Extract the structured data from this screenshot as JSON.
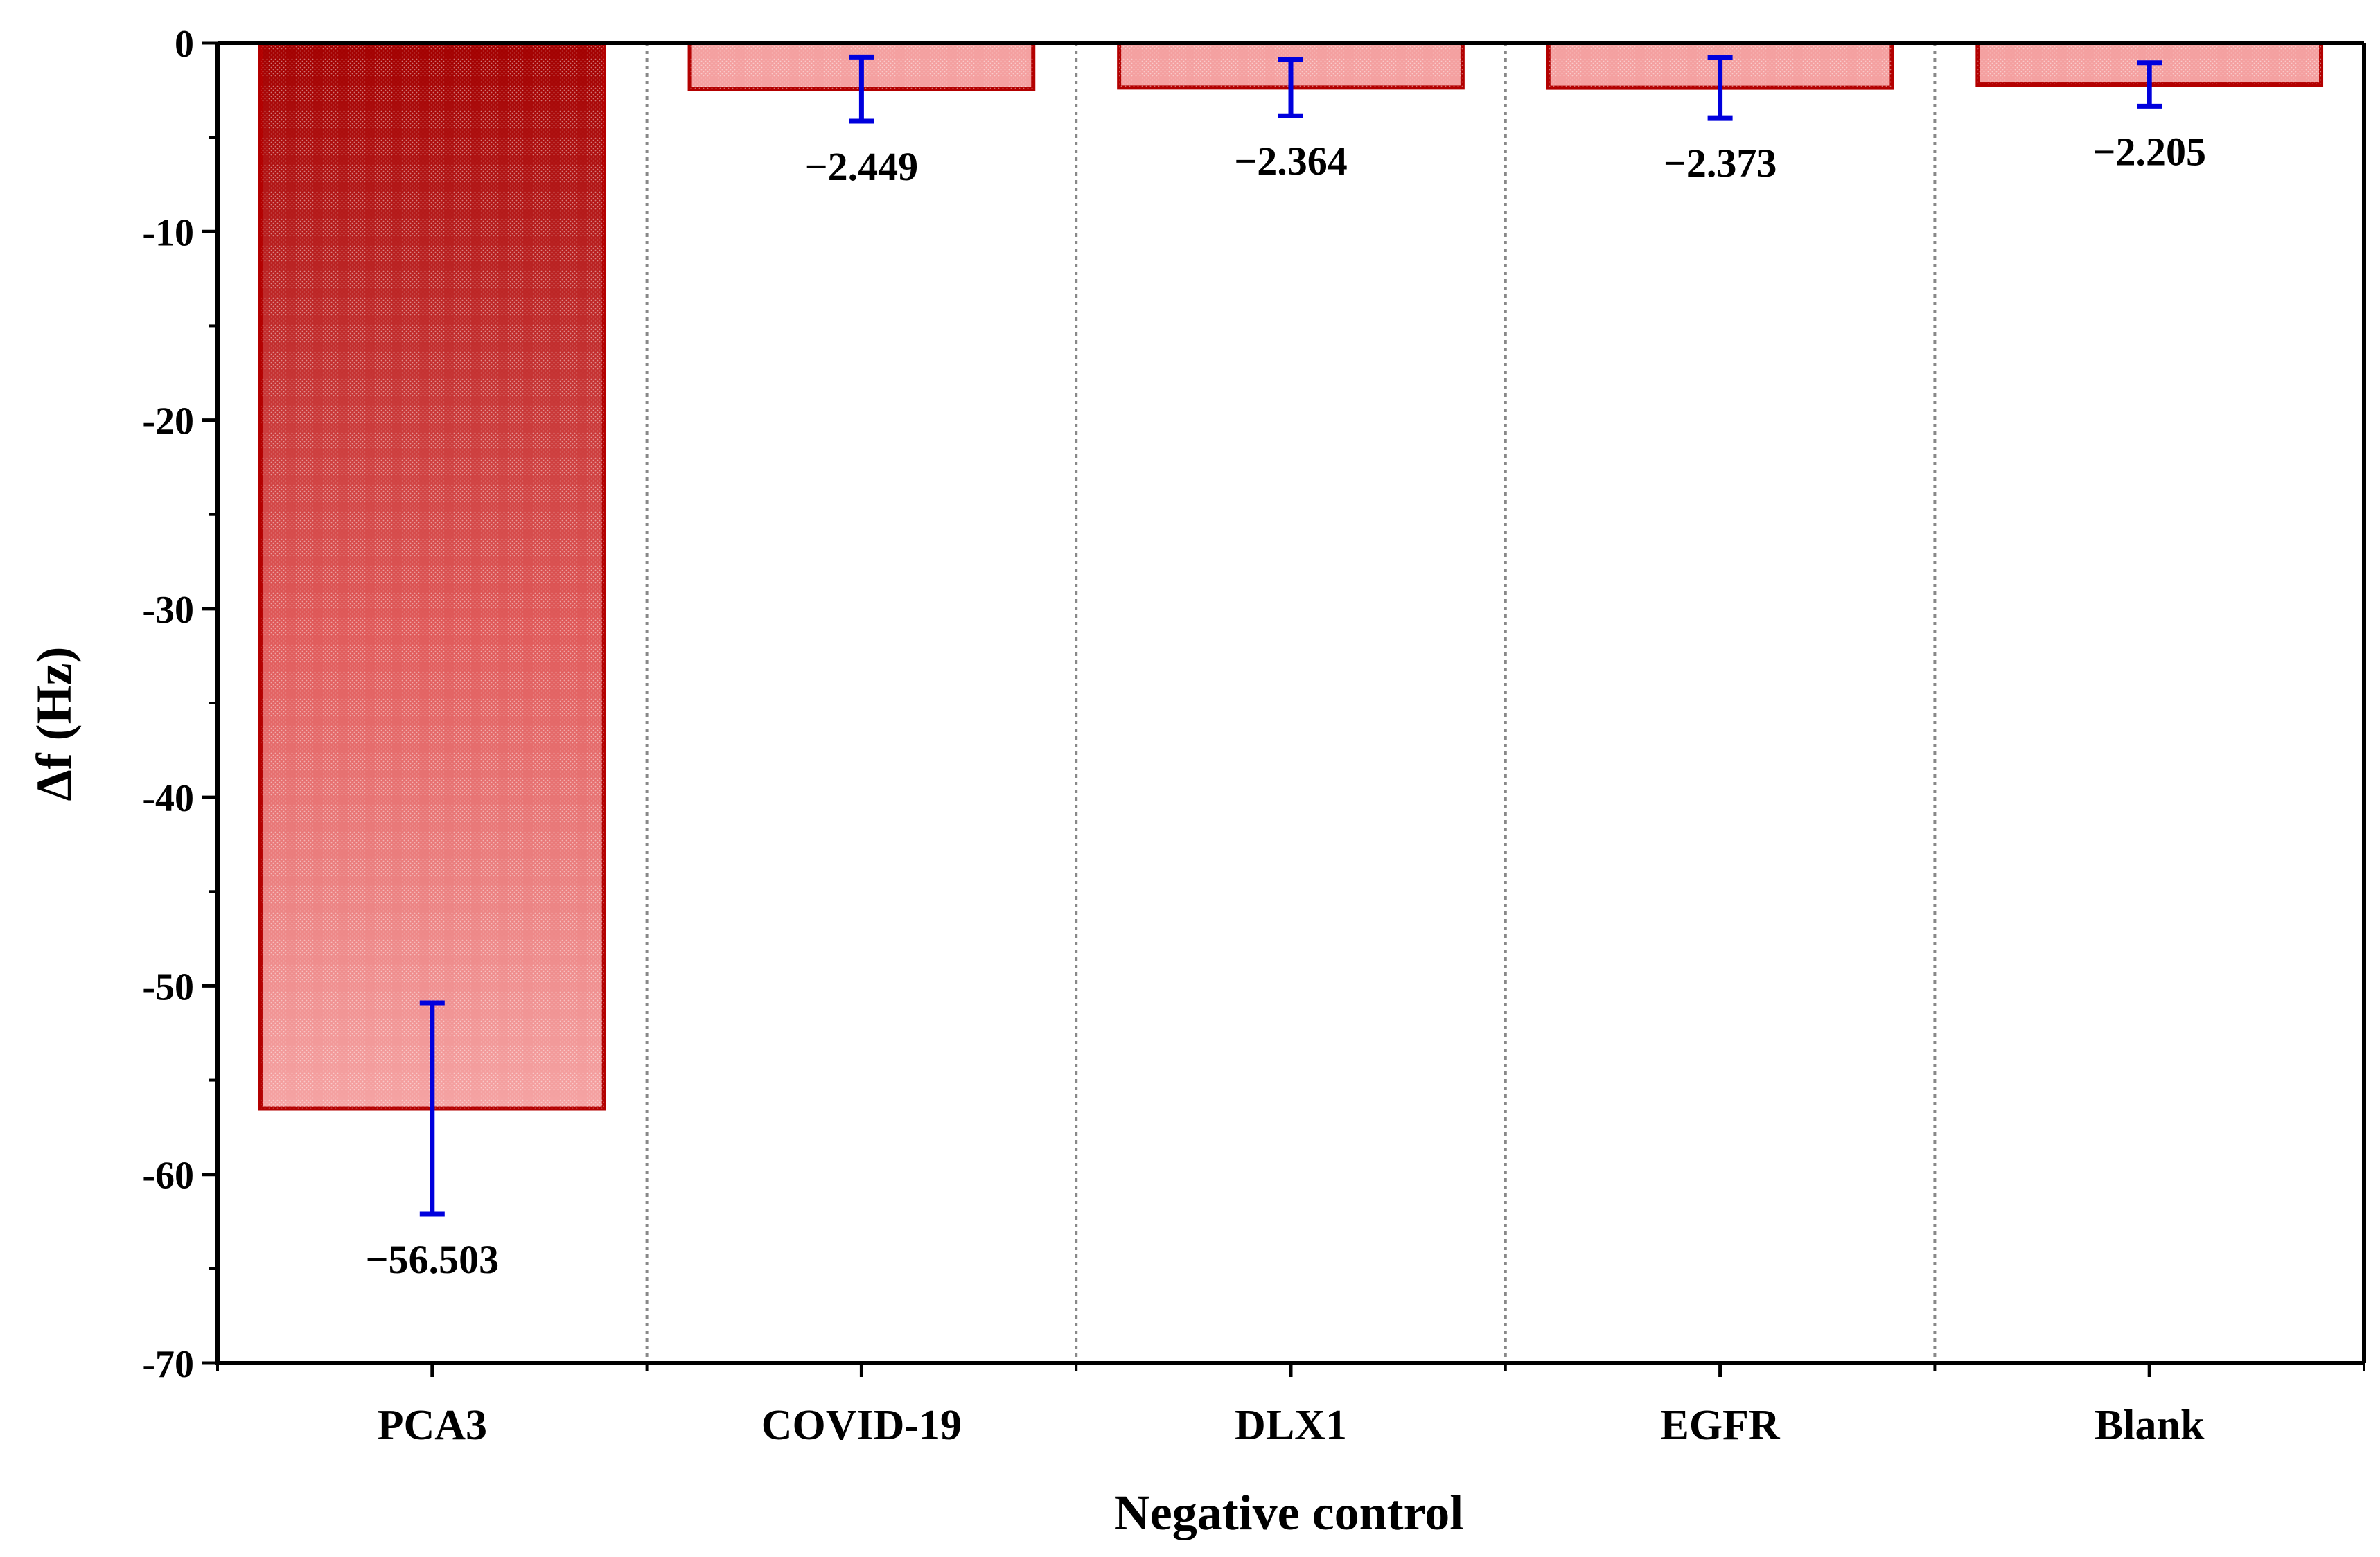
{
  "chart_data": {
    "type": "bar",
    "title": "",
    "xlabel": "Negative control",
    "ylabel": "Δf (Hz)",
    "categories": [
      "PCA3",
      "COVID-19",
      "DLX1",
      "EGFR",
      "Blank"
    ],
    "values": [
      -56.503,
      -2.449,
      -2.364,
      -2.373,
      -2.205
    ],
    "errors": [
      5.6,
      1.7,
      1.5,
      1.6,
      1.15
    ],
    "value_labels": [
      "−56.503",
      "−2.449",
      "−2.364",
      "−2.373",
      "−2.205"
    ],
    "ylim": [
      -70,
      0
    ],
    "yticks": [
      0,
      -10,
      -20,
      -30,
      -40,
      -50,
      -60,
      -70
    ],
    "ytick_labels": [
      "0",
      "-10",
      "-20",
      "-30",
      "-40",
      "-50",
      "-60",
      "-70"
    ],
    "grid": false,
    "category_separators": "dotted",
    "colors": {
      "bar_dark": "#a30000",
      "bar_light": "#f5a3a3",
      "bar_edge": "#b30000",
      "error_bar": "#0000dd",
      "axis": "#000000",
      "separator": "#888888"
    }
  }
}
